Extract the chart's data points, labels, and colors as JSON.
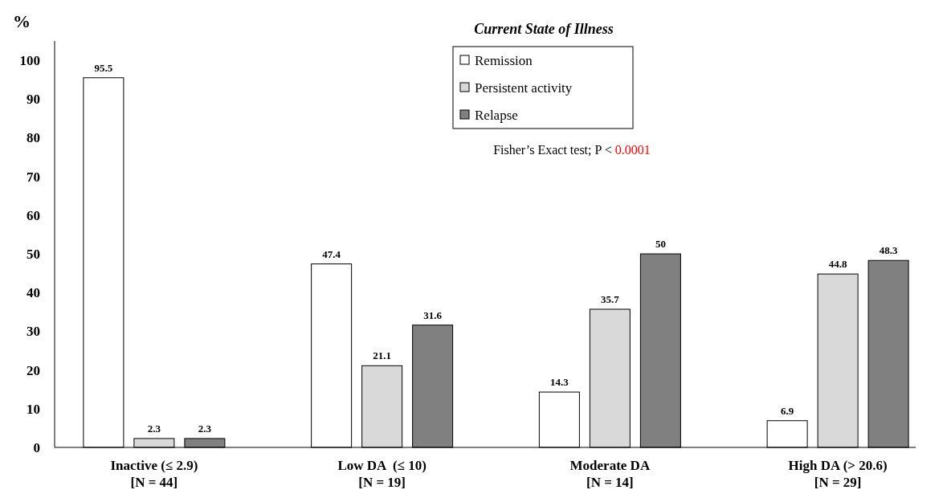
{
  "chart_data": {
    "type": "bar",
    "ylabel": "%",
    "legend_title": "Current State of Illness",
    "categories": [
      "Inactive (≤ 2.9)\n[N = 44]",
      "Low DA  (≤ 10)\n[N = 19]",
      "Moderate DA\n[N = 14]",
      "High DA (> 20.6)\n[N = 29]"
    ],
    "series": [
      {
        "name": "Remission",
        "color": "#ffffff",
        "values": [
          95.5,
          47.4,
          14.3,
          6.9
        ]
      },
      {
        "name": "Persistent activity",
        "color": "#d9d9d9",
        "values": [
          2.3,
          21.1,
          35.7,
          44.8
        ]
      },
      {
        "name": "Relapse",
        "color": "#808080",
        "values": [
          2.3,
          31.6,
          50,
          48.3
        ]
      }
    ],
    "ylim": [
      0,
      105
    ],
    "yticks": [
      0,
      10,
      20,
      30,
      40,
      50,
      60,
      70,
      80,
      90,
      100
    ],
    "data_labels": true,
    "legend": "top",
    "grid": false,
    "annotations": [
      "Fisher’s Exact test; P < 0.0001"
    ]
  }
}
